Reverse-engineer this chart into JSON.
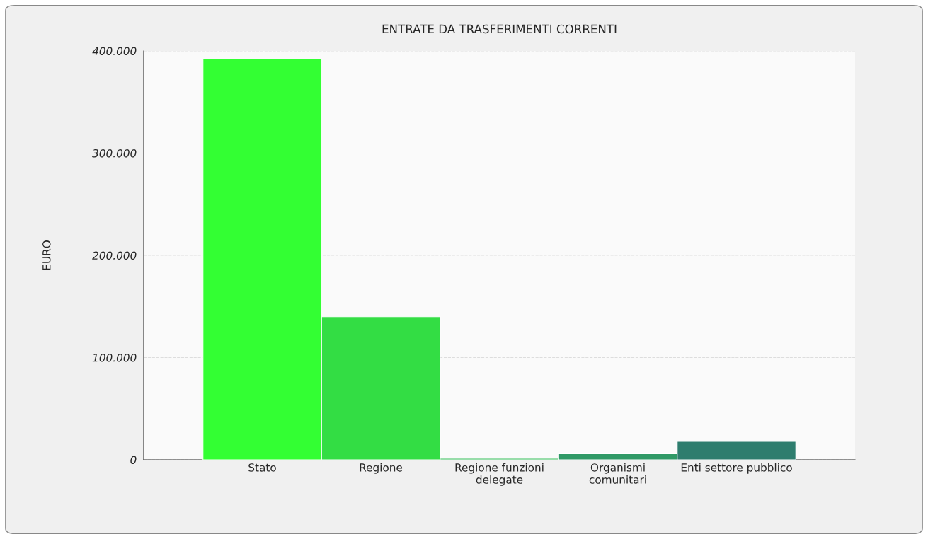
{
  "chart_data": {
    "type": "bar",
    "title": "ENTRATE DA TRASFERIMENTI CORRENTI",
    "ylabel": "EURO",
    "categories": [
      "Stato",
      "Regione",
      "Regione funzioni\ndelegate",
      "Organismi\ncomunitari",
      "Enti settore pubblico"
    ],
    "values": [
      392000,
      140000,
      1500,
      6000,
      18000
    ],
    "colors": [
      "#33ff33",
      "#33dd44",
      "#30bb55",
      "#2f9966",
      "#2e7d6e"
    ],
    "ylim": [
      0,
      400000
    ],
    "yticks": [
      {
        "value": 0,
        "label": "0"
      },
      {
        "value": 100000,
        "label": "100.000"
      },
      {
        "value": 200000,
        "label": "200.000"
      },
      {
        "value": 300000,
        "label": "300.000"
      },
      {
        "value": 400000,
        "label": "400.000"
      }
    ],
    "grid": "y"
  }
}
